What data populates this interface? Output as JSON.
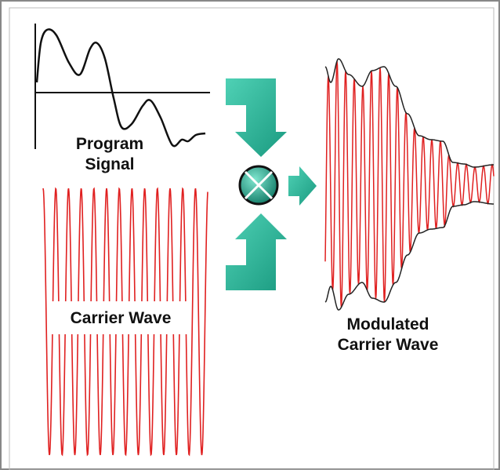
{
  "program_signal": {
    "label_lines": [
      "Program",
      "Signal"
    ]
  },
  "carrier_wave": {
    "label": "Carrier Wave"
  },
  "modulated_wave": {
    "label_lines": [
      "Modulated",
      "Carrier Wave"
    ]
  }
}
